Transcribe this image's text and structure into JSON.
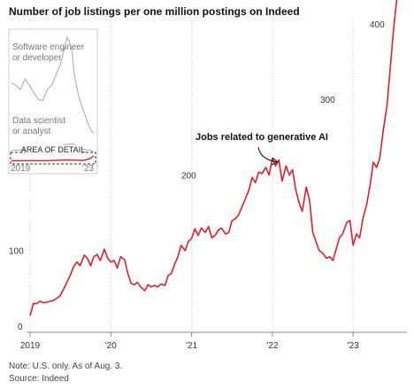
{
  "title": "Number of job listings per one million postings on Indeed",
  "footer": {
    "note": "Note: U.S. only. As of Aug. 3.",
    "source": "Source: Indeed"
  },
  "colors": {
    "main_line": "#e0202a",
    "inset_line": "#a8a8a8",
    "grid": "#d9d9d9",
    "axis": "#888888"
  },
  "chart_data": [
    {
      "type": "line",
      "title": "",
      "annotation": "Jobs related to generative AI",
      "x_ticks": [
        "2019",
        "'20",
        "'21",
        "'22",
        "'23"
      ],
      "x_tick_years": [
        2019,
        2020,
        2021,
        2022,
        2023
      ],
      "y_ticks": [
        0,
        100,
        200,
        300,
        400
      ],
      "ylim": [
        0,
        430
      ],
      "xlim": [
        2019.0,
        2023.65
      ],
      "grid": "vertical dotted",
      "series": [
        {
          "x": [
            2019.0,
            2019.04,
            2019.08,
            2019.12,
            2019.17,
            2019.21,
            2019.25,
            2019.29,
            2019.33,
            2019.37,
            2019.42,
            2019.46,
            2019.5,
            2019.54,
            2019.58,
            2019.62,
            2019.67,
            2019.71,
            2019.75,
            2019.79,
            2019.83,
            2019.87,
            2019.92,
            2019.96,
            2020.0,
            2020.04,
            2020.08,
            2020.12,
            2020.17,
            2020.21,
            2020.25,
            2020.29,
            2020.33,
            2020.37,
            2020.42,
            2020.46,
            2020.5,
            2020.54,
            2020.58,
            2020.62,
            2020.67,
            2020.71,
            2020.75,
            2020.79,
            2020.83,
            2020.87,
            2020.92,
            2020.96,
            2021.0,
            2021.04,
            2021.08,
            2021.12,
            2021.17,
            2021.21,
            2021.25,
            2021.29,
            2021.33,
            2021.37,
            2021.42,
            2021.46,
            2021.5,
            2021.54,
            2021.58,
            2021.62,
            2021.67,
            2021.71,
            2021.75,
            2021.79,
            2021.83,
            2021.87,
            2021.92,
            2021.96,
            2022.0,
            2022.04,
            2022.08,
            2022.12,
            2022.17,
            2022.21,
            2022.25,
            2022.29,
            2022.33,
            2022.37,
            2022.42,
            2022.46,
            2022.5,
            2022.54,
            2022.58,
            2022.62,
            2022.67,
            2022.71,
            2022.75,
            2022.79,
            2022.83,
            2022.87,
            2022.92,
            2022.96,
            2023.0,
            2023.04,
            2023.08,
            2023.12,
            2023.17,
            2023.21,
            2023.25,
            2023.29,
            2023.33,
            2023.37,
            2023.42,
            2023.46,
            2023.5,
            2023.54,
            2023.58,
            2023.62
          ],
          "values": [
            22,
            38,
            38,
            41,
            39,
            40,
            41,
            42,
            45,
            48,
            58,
            67,
            76,
            87,
            93,
            88,
            102,
            98,
            88,
            100,
            103,
            95,
            110,
            98,
            93,
            95,
            85,
            100,
            96,
            78,
            65,
            63,
            66,
            60,
            55,
            63,
            60,
            62,
            60,
            64,
            62,
            75,
            78,
            90,
            100,
            115,
            108,
            120,
            124,
            137,
            128,
            138,
            132,
            140,
            125,
            128,
            135,
            138,
            130,
            132,
            148,
            150,
            155,
            165,
            178,
            188,
            205,
            198,
            212,
            210,
            218,
            208,
            230,
            220,
            228,
            200,
            220,
            208,
            215,
            188,
            172,
            160,
            192,
            175,
            132,
            120,
            108,
            105,
            98,
            100,
            95,
            110,
            125,
            130,
            145,
            148,
            115,
            130,
            125,
            150,
            170,
            195,
            225,
            218,
            230,
            265,
            300,
            350,
            400,
            440,
            445,
            445
          ]
        }
      ]
    },
    {
      "type": "line",
      "title": "",
      "x_ticks": [
        "2019",
        "'23"
      ],
      "labels": [
        "Software engineer or developer",
        "Data scientist or analyst"
      ],
      "label_lines": [
        [
          "Software engineer",
          "or developer"
        ],
        [
          "Data scientist",
          "or analyst"
        ]
      ],
      "detail_label": "AREA OF DETAIL",
      "ylim": [
        0,
        6000
      ],
      "series": [
        {
          "x": [
            2019.0,
            2019.25,
            2019.5,
            2019.75,
            2020.0,
            2020.25,
            2020.5,
            2020.75,
            2021.0,
            2021.25,
            2021.5,
            2021.75,
            2022.0,
            2022.1,
            2022.25,
            2022.4,
            2022.5,
            2022.75,
            2023.0,
            2023.25,
            2023.5,
            2023.6
          ],
          "values": [
            3600,
            3500,
            3300,
            3800,
            3500,
            3150,
            2850,
            2800,
            3300,
            3500,
            4000,
            4500,
            5300,
            5700,
            5500,
            5000,
            4100,
            3000,
            2400,
            1800,
            1350,
            1300
          ]
        },
        {
          "x": [
            2019.0,
            2019.5,
            2020.0,
            2020.5,
            2021.0,
            2021.5,
            2022.0,
            2022.4,
            2022.75,
            2023.0,
            2023.5,
            2023.6
          ],
          "values": [
            500,
            520,
            540,
            450,
            500,
            600,
            770,
            800,
            650,
            560,
            480,
            450
          ]
        },
        {
          "x": [
            2019.0,
            2020.0,
            2021.0,
            2022.0,
            2022.5,
            2023.0,
            2023.4,
            2023.6
          ],
          "values": [
            20,
            30,
            25,
            60,
            55,
            40,
            120,
            250
          ]
        }
      ]
    }
  ]
}
